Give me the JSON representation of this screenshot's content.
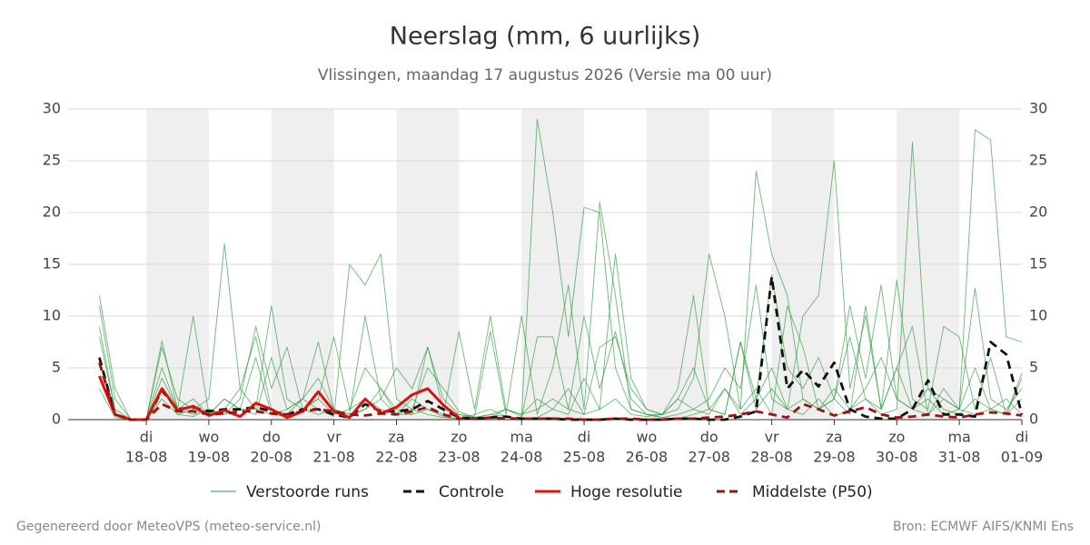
{
  "chart_data": {
    "type": "line",
    "title": "Neerslag (mm, 6 uurlijks)",
    "subtitle": "Vlissingen, maandag 17 augustus 2026 (Versie ma 00 uur)",
    "x": [
      0.25,
      0.5,
      0.75,
      1,
      1.25,
      1.5,
      1.75,
      2,
      2.25,
      2.5,
      2.75,
      3,
      3.25,
      3.5,
      3.75,
      4,
      4.25,
      4.5,
      4.75,
      5,
      5.25,
      5.5,
      5.75,
      6,
      6.25,
      6.5,
      6.75,
      7,
      7.25,
      7.5,
      7.75,
      8,
      8.25,
      8.5,
      8.75,
      9,
      9.25,
      9.5,
      9.75,
      10,
      10.25,
      10.5,
      10.75,
      11,
      11.25,
      11.5,
      11.75,
      12,
      12.25,
      12.5,
      12.75,
      13,
      13.25,
      13.5,
      13.75,
      14,
      14.25,
      14.5,
      14.75,
      15
    ],
    "xlim": [
      -0.25,
      15
    ],
    "xticks": [
      {
        "value": 1,
        "label": "18-08",
        "day": "di"
      },
      {
        "value": 2,
        "label": "19-08",
        "day": "wo"
      },
      {
        "value": 3,
        "label": "20-08",
        "day": "do"
      },
      {
        "value": 4,
        "label": "21-08",
        "day": "vr"
      },
      {
        "value": 5,
        "label": "22-08",
        "day": "za"
      },
      {
        "value": 6,
        "label": "23-08",
        "day": "zo"
      },
      {
        "value": 7,
        "label": "24-08",
        "day": "ma"
      },
      {
        "value": 8,
        "label": "25-08",
        "day": "di"
      },
      {
        "value": 9,
        "label": "26-08",
        "day": "wo"
      },
      {
        "value": 10,
        "label": "27-08",
        "day": "do"
      },
      {
        "value": 11,
        "label": "28-08",
        "day": "vr"
      },
      {
        "value": 12,
        "label": "29-08",
        "day": "za"
      },
      {
        "value": 13,
        "label": "30-08",
        "day": "zo"
      },
      {
        "value": 14,
        "label": "31-08",
        "day": "ma"
      },
      {
        "value": 15,
        "label": "01-09",
        "day": "di"
      }
    ],
    "ylim": [
      0,
      30
    ],
    "yticks": [
      0,
      5,
      10,
      15,
      20,
      25,
      30
    ],
    "grid": true,
    "ensemble": {
      "name": "Verstoorde runs",
      "color": "#2e9a3a",
      "runs": [
        [
          11,
          2,
          0,
          0.1,
          5,
          1,
          2,
          0.5,
          1,
          3,
          8,
          1,
          0.5,
          2,
          4,
          1,
          0.3,
          1,
          2,
          0.5,
          1,
          5,
          3,
          0.8,
          0.2,
          0.5,
          1,
          0.3,
          29,
          20,
          8,
          20.5,
          20,
          5,
          1,
          0.5,
          0.2,
          0.1,
          0.5,
          1,
          3,
          0.5,
          2,
          5,
          1,
          0.5,
          2,
          0.3,
          1,
          3,
          6,
          2,
          1,
          0.5,
          3,
          1,
          0.5,
          1,
          2,
          0.5
        ],
        [
          9,
          1,
          0,
          0,
          3,
          0.5,
          1,
          2,
          17,
          3,
          1,
          0.5,
          1,
          2,
          1,
          0.3,
          15,
          13,
          16,
          2,
          1,
          0.5,
          0.2,
          0.1,
          0.5,
          1,
          0.3,
          0.1,
          0.2,
          1,
          3,
          0.5,
          1,
          16,
          4,
          1,
          0.5,
          2,
          1,
          0.5,
          3,
          1,
          24,
          16,
          12,
          2,
          1,
          3,
          1,
          2,
          0.5,
          1,
          26.8,
          3,
          1,
          0.5,
          2,
          1,
          0.5,
          4
        ],
        [
          12,
          3,
          0,
          0.1,
          7,
          2,
          1,
          0.5,
          2,
          1,
          1,
          11,
          2,
          1,
          0.5,
          1,
          0.5,
          10,
          2,
          5,
          3,
          7,
          1,
          0.5,
          0.3,
          8.5,
          0.5,
          10,
          0.5,
          5,
          13,
          1,
          21,
          12,
          1,
          0.5,
          0.2,
          0.5,
          1,
          2,
          5,
          3,
          13,
          2,
          1,
          10,
          12,
          25,
          3,
          10,
          1,
          5,
          1,
          2,
          0.5,
          1,
          28,
          27,
          8,
          7.5
        ],
        [
          8,
          1,
          0,
          0,
          4,
          1,
          0.5,
          1,
          0.5,
          2,
          9,
          3,
          7,
          1,
          2,
          0.5,
          1,
          5,
          3,
          1,
          0.5,
          7,
          2,
          0.5,
          0.2,
          0.5,
          0.3,
          0.1,
          8,
          8,
          1,
          10,
          3,
          8.5,
          2,
          0.5,
          0.5,
          3,
          12,
          1,
          0.5,
          7.5,
          2,
          14,
          5,
          3,
          6,
          2,
          11,
          4,
          13,
          2,
          1,
          3,
          2,
          1,
          12.7,
          2,
          1,
          3
        ],
        [
          6,
          0.5,
          0,
          0,
          2,
          0.5,
          0.3,
          1,
          0.5,
          1,
          6,
          0.5,
          0.3,
          1,
          2,
          8,
          1,
          2,
          1,
          0.5,
          0.5,
          1,
          0.3,
          0.1,
          0.1,
          0.2,
          1,
          0.5,
          2,
          1,
          0.5,
          4,
          1,
          2,
          0.5,
          0.3,
          0.5,
          2,
          5,
          1,
          0.5,
          7.5,
          1,
          3,
          1,
          2,
          1,
          2,
          8,
          2,
          1,
          5,
          9,
          0.5,
          2,
          1,
          5,
          1,
          0.5,
          2
        ],
        [
          3,
          0.2,
          0,
          0,
          7.6,
          1,
          10,
          0.5,
          2,
          1,
          0.5,
          6,
          1,
          2,
          7.5,
          1,
          0.5,
          1,
          3,
          0.5,
          2,
          1,
          0.5,
          8.5,
          1,
          10,
          1,
          0.5,
          1,
          2,
          1,
          0.5,
          7,
          8,
          3,
          1,
          0.5,
          1,
          4,
          16,
          10,
          1,
          3,
          0.5,
          11,
          7,
          1,
          2,
          0.5,
          11,
          1,
          13.5,
          2,
          1,
          9,
          8,
          1,
          6,
          0.5,
          4.5
        ]
      ]
    },
    "series": [
      {
        "name": "Controle",
        "color": "#111111",
        "dashed": true,
        "values": [
          6,
          0.5,
          0,
          0,
          2.8,
          1,
          1.2,
          0.8,
          1,
          1,
          1.2,
          0.8,
          0.5,
          1,
          1,
          0.5,
          0.2,
          1.5,
          0.8,
          0.8,
          1,
          1.8,
          1,
          0.2,
          0.1,
          0.2,
          0.3,
          0.1,
          0.1,
          0.1,
          0,
          0,
          0,
          0.1,
          0,
          0,
          0,
          0.1,
          0.1,
          0,
          0,
          0.3,
          0.8,
          13.8,
          3,
          4.8,
          3.2,
          5.5,
          1,
          0.3,
          0.1,
          0.1,
          1,
          3.8,
          0.5,
          0.5,
          0.3,
          7.5,
          6.3,
          0.5
        ]
      },
      {
        "name": "Hoge resolutie",
        "color": "#e01010",
        "dashed": false,
        "values": [
          4.2,
          0.5,
          0,
          0,
          3,
          0.9,
          1.3,
          0.4,
          0.9,
          0.3,
          1.6,
          1,
          0.2,
          0.8,
          2.7,
          0.8,
          0.2,
          2,
          0.6,
          1.2,
          2.4,
          3,
          1.4,
          0.2,
          null,
          null,
          null,
          null,
          null,
          null,
          null,
          null,
          null,
          null,
          null,
          null,
          null,
          null,
          null,
          null,
          null,
          null,
          null,
          null,
          null,
          null,
          null,
          null,
          null,
          null,
          null,
          null,
          null,
          null,
          null,
          null,
          null,
          null,
          null,
          null
        ]
      },
      {
        "name": "Middelste (P50)",
        "color": "#a01010",
        "dashed": true,
        "values": [
          5.5,
          0.5,
          0,
          0,
          1.5,
          0.8,
          0.8,
          0.5,
          0.6,
          0.8,
          0.8,
          0.6,
          0.5,
          0.8,
          1,
          0.8,
          0.5,
          0.4,
          0.6,
          0.5,
          0.8,
          1.2,
          0.5,
          0.1,
          0.1,
          0.2,
          0.1,
          0.1,
          0.1,
          0.1,
          0.1,
          0,
          0,
          0.1,
          0.1,
          0,
          0,
          0.1,
          0.1,
          0.2,
          0.3,
          0.5,
          0.8,
          0.5,
          0.2,
          1.5,
          1,
          0.4,
          0.8,
          1.2,
          0.5,
          0.2,
          0.3,
          0.5,
          0.3,
          0.2,
          0.5,
          0.7,
          0.6,
          0.4
        ]
      }
    ],
    "footer_left": "Gegenereerd door MeteoVPS (meteo-service.nl)",
    "footer_right": "Bron: ECMWF AIFS/KNMI Ens"
  }
}
